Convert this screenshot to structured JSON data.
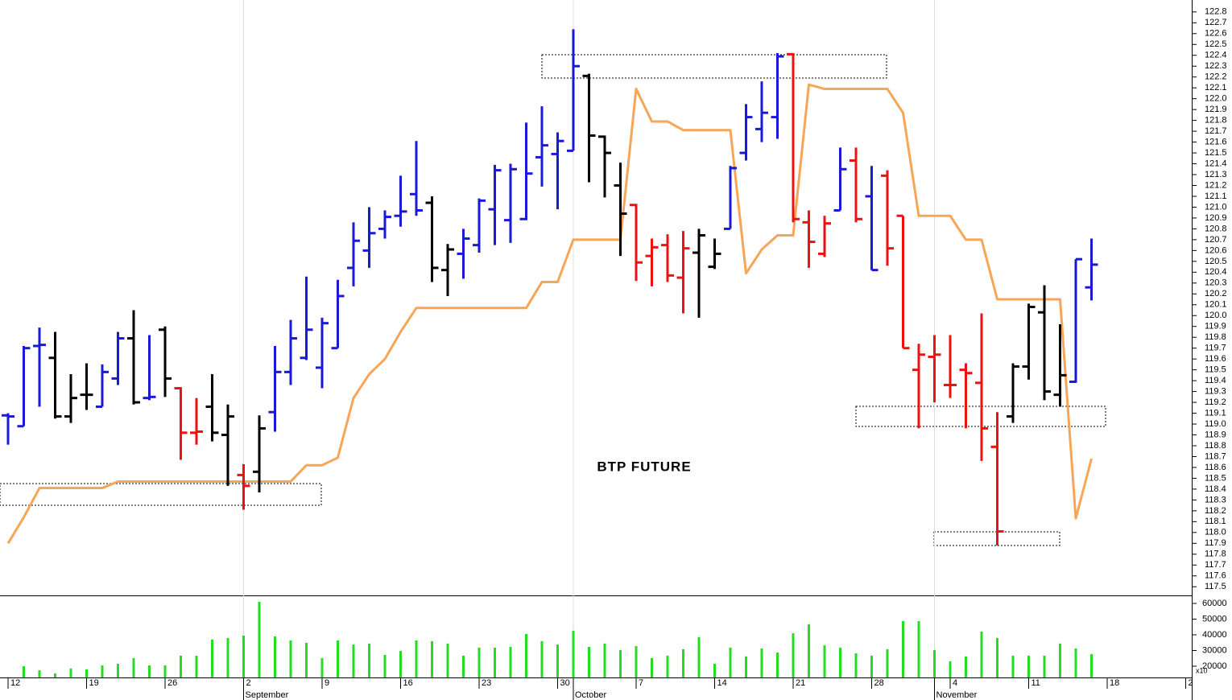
{
  "chart_data": {
    "type": "ohlc",
    "title": "BTP FUTURE",
    "categories": [
      "12",
      null,
      null,
      null,
      null,
      "19",
      null,
      null,
      null,
      null,
      "26",
      null,
      null,
      null,
      null,
      "2",
      null,
      null,
      null,
      null,
      "9",
      null,
      null,
      null,
      null,
      "16",
      null,
      null,
      null,
      null,
      "23",
      null,
      null,
      null,
      null,
      "30",
      null,
      null,
      null,
      null,
      "7",
      null,
      null,
      null,
      null,
      "14",
      null,
      null,
      null,
      null,
      "21",
      null,
      null,
      null,
      null,
      "28",
      null,
      null,
      null,
      null,
      "4",
      null,
      null,
      null,
      null,
      "11",
      null,
      null,
      null,
      null,
      "18",
      null,
      null,
      null,
      null,
      "2"
    ],
    "month_labels": [
      null,
      null,
      null,
      null,
      null,
      null,
      null,
      null,
      null,
      null,
      null,
      null,
      null,
      null,
      null,
      "September",
      null,
      null,
      null,
      null,
      null,
      null,
      null,
      null,
      null,
      null,
      null,
      null,
      null,
      null,
      null,
      null,
      null,
      null,
      null,
      null,
      "October",
      null,
      null,
      null,
      null,
      null,
      null,
      null,
      null,
      null,
      null,
      null,
      null,
      null,
      null,
      null,
      null,
      null,
      null,
      null,
      null,
      null,
      null,
      "November",
      null,
      null,
      null,
      null,
      null,
      null,
      null,
      null,
      null,
      null,
      null,
      null,
      null,
      null,
      null,
      null
    ],
    "open": [
      119.08,
      118.98,
      119.72,
      119.61,
      119.07,
      119.27,
      119.16,
      119.42,
      119.79,
      119.24,
      119.87,
      119.33,
      118.92,
      119.16,
      118.9,
      118.53,
      118.56,
      119.11,
      119.48,
      119.61,
      119.52,
      119.7,
      120.44,
      120.6,
      120.8,
      120.92,
      121.12,
      121.04,
      120.42,
      120.57,
      120.65,
      120.98,
      120.88,
      120.89,
      121.46,
      121.49,
      121.52,
      122.21,
      121.65,
      121.2,
      121.02,
      120.55,
      120.65,
      120.35,
      120.58,
      120.45,
      120.8,
      121.5,
      121.72,
      121.83,
      122.41,
      120.86,
      120.57,
      120.97,
      121.43,
      121.1,
      121.29,
      120.92,
      119.5,
      119.62,
      119.36,
      119.5,
      119.38,
      118.79,
      119.07,
      119.53,
      120.03,
      119.27,
      119.39,
      120.26,
      null,
      null,
      null,
      null,
      null,
      null
    ],
    "high": [
      119.1,
      119.72,
      119.89,
      119.85,
      119.46,
      119.56,
      119.55,
      119.85,
      120.05,
      119.82,
      119.9,
      119.34,
      119.24,
      119.46,
      119.18,
      118.63,
      119.08,
      119.72,
      119.96,
      120.36,
      119.98,
      120.33,
      120.86,
      121.0,
      120.97,
      121.29,
      121.61,
      121.1,
      120.66,
      120.8,
      121.08,
      121.39,
      121.4,
      121.78,
      121.93,
      121.69,
      122.64,
      122.23,
      121.66,
      121.41,
      121.03,
      120.71,
      120.75,
      120.78,
      120.8,
      120.71,
      121.38,
      121.95,
      122.16,
      122.42,
      122.42,
      120.97,
      120.92,
      121.55,
      121.55,
      121.38,
      121.34,
      120.92,
      119.74,
      119.82,
      119.82,
      119.56,
      120.02,
      119.11,
      119.56,
      120.11,
      120.28,
      119.92,
      120.52,
      120.71,
      null,
      null,
      null,
      null,
      null,
      null
    ],
    "low": [
      118.81,
      118.98,
      119.16,
      119.05,
      119.01,
      119.13,
      119.16,
      119.36,
      119.18,
      119.22,
      119.25,
      118.67,
      118.81,
      118.84,
      118.43,
      118.21,
      118.37,
      118.93,
      119.36,
      119.59,
      119.33,
      119.7,
      120.27,
      120.44,
      120.71,
      120.82,
      120.92,
      120.31,
      120.18,
      120.34,
      120.58,
      120.65,
      120.67,
      120.88,
      121.19,
      120.98,
      121.52,
      121.23,
      121.09,
      120.55,
      120.32,
      120.27,
      120.31,
      120.02,
      119.98,
      120.43,
      120.8,
      121.43,
      121.6,
      121.63,
      120.86,
      120.44,
      120.54,
      120.97,
      120.86,
      120.42,
      120.46,
      119.7,
      118.96,
      119.2,
      119.24,
      118.96,
      118.66,
      117.88,
      119.01,
      119.41,
      119.22,
      119.16,
      119.38,
      120.14,
      null,
      null,
      null,
      null,
      null,
      null
    ],
    "close": [
      119.07,
      119.7,
      119.73,
      119.07,
      119.24,
      119.27,
      119.48,
      119.79,
      119.2,
      119.25,
      119.42,
      118.92,
      118.93,
      118.92,
      119.07,
      118.43,
      118.96,
      119.48,
      119.79,
      119.87,
      119.93,
      120.18,
      120.69,
      120.76,
      120.91,
      120.96,
      120.97,
      120.44,
      120.61,
      120.71,
      121.06,
      121.34,
      121.35,
      121.31,
      121.57,
      121.61,
      122.3,
      121.66,
      121.5,
      120.94,
      120.49,
      120.63,
      120.37,
      120.62,
      120.74,
      120.57,
      121.36,
      121.83,
      121.87,
      122.39,
      120.89,
      120.68,
      120.85,
      121.35,
      120.89,
      120.42,
      120.62,
      119.7,
      119.64,
      119.64,
      119.36,
      119.47,
      118.96,
      118.01,
      119.53,
      120.08,
      119.3,
      119.45,
      120.52,
      120.47,
      null,
      null,
      null,
      null,
      null,
      null
    ],
    "bar_colors": [
      "#1a1ad6",
      "#1a1ad6",
      "#1a1ad6",
      "#000000",
      "#000000",
      "#000000",
      "#1a1ad6",
      "#1a1ad6",
      "#000000",
      "#1a1ad6",
      "#000000",
      "#ee1111",
      "#ee1111",
      "#000000",
      "#000000",
      "#ee1111",
      "#000000",
      "#1a1ad6",
      "#1a1ad6",
      "#1a1ad6",
      "#1a1ad6",
      "#1a1ad6",
      "#1a1ad6",
      "#1a1ad6",
      "#1a1ad6",
      "#1a1ad6",
      "#1a1ad6",
      "#000000",
      "#000000",
      "#1a1ad6",
      "#1a1ad6",
      "#1a1ad6",
      "#1a1ad6",
      "#1a1ad6",
      "#1a1ad6",
      "#1a1ad6",
      "#1a1ad6",
      "#000000",
      "#000000",
      "#000000",
      "#ee1111",
      "#ee1111",
      "#ee1111",
      "#ee1111",
      "#000000",
      "#000000",
      "#1a1ad6",
      "#1a1ad6",
      "#1a1ad6",
      "#1a1ad6",
      "#ee1111",
      "#ee1111",
      "#ee1111",
      "#1a1ad6",
      "#ee1111",
      "#1a1ad6",
      "#ee1111",
      "#ee1111",
      "#ee1111",
      "#ee1111",
      "#ee1111",
      "#ee1111",
      "#ee1111",
      "#ee1111",
      "#000000",
      "#000000",
      "#000000",
      "#000000",
      "#1a1ad6",
      "#1a1ad6",
      null,
      null,
      null,
      null,
      null,
      null
    ],
    "signal": [
      117.9,
      118.14,
      118.41,
      118.41,
      118.41,
      118.41,
      118.41,
      118.47,
      118.47,
      118.47,
      118.47,
      118.47,
      118.47,
      118.47,
      118.47,
      118.47,
      118.47,
      118.47,
      118.47,
      118.62,
      118.62,
      118.69,
      119.24,
      119.46,
      119.6,
      119.85,
      120.07,
      120.07,
      120.07,
      120.07,
      120.07,
      120.07,
      120.07,
      120.07,
      120.31,
      120.31,
      120.7,
      120.7,
      120.7,
      120.7,
      122.09,
      121.79,
      121.79,
      121.71,
      121.71,
      121.71,
      121.71,
      120.39,
      120.61,
      120.74,
      120.74,
      122.13,
      122.09,
      122.09,
      122.09,
      122.09,
      122.09,
      121.87,
      120.92,
      120.92,
      120.92,
      120.7,
      120.7,
      120.15,
      120.15,
      120.15,
      120.15,
      120.15,
      118.13,
      118.68,
      null,
      null,
      null,
      null,
      null,
      null
    ],
    "signal_color": "#f7a557",
    "ylim": [
      117.42,
      122.91
    ],
    "yticks": [
      117.5,
      117.6,
      117.7,
      117.8,
      117.9,
      {
        "value": 118,
        "label": "118.0"
      },
      118.1,
      118.2,
      118.3,
      118.4,
      118.5,
      118.6,
      118.7,
      118.8,
      118.9,
      {
        "value": 119,
        "label": "119.0"
      },
      119.1,
      119.2,
      119.3,
      119.4,
      119.5,
      119.6,
      119.7,
      119.8,
      119.9,
      {
        "value": 120,
        "label": "120.0"
      },
      120.1,
      120.2,
      120.3,
      120.4,
      120.5,
      120.6,
      120.7,
      120.8,
      120.9,
      {
        "value": 121,
        "label": "121.0"
      },
      121.1,
      121.2,
      121.3,
      121.4,
      121.5,
      121.6,
      121.7,
      121.8,
      121.9,
      {
        "value": 122,
        "label": "122.0"
      },
      122.1,
      122.2,
      122.3,
      122.4,
      122.5,
      122.6,
      122.7,
      122.8
    ],
    "volume": {
      "values": [
        13000,
        20000,
        17400,
        15400,
        18500,
        18000,
        20500,
        21500,
        25100,
        20500,
        20500,
        26700,
        26700,
        37000,
        38000,
        39500,
        61000,
        39000,
        36400,
        34900,
        25100,
        36400,
        33800,
        34400,
        27200,
        29700,
        36400,
        35900,
        34400,
        26700,
        31800,
        31800,
        32300,
        40500,
        35900,
        33800,
        42600,
        32300,
        34400,
        30300,
        32800,
        25100,
        26700,
        30800,
        38500,
        21500,
        31800,
        26200,
        31300,
        28700,
        41000,
        46700,
        33300,
        31800,
        28200,
        26700,
        30800,
        48700,
        48700,
        30300,
        23100,
        26200,
        42100,
        38000,
        26700,
        26700,
        26700,
        34400,
        31300,
        27700,
        null,
        null,
        null,
        null,
        null,
        null
      ],
      "color": "#22dd22",
      "ylim": [
        12800,
        64600
      ],
      "yticks": [
        20000,
        30000,
        40000,
        50000,
        60000
      ],
      "scale_label": "x10"
    }
  }
}
